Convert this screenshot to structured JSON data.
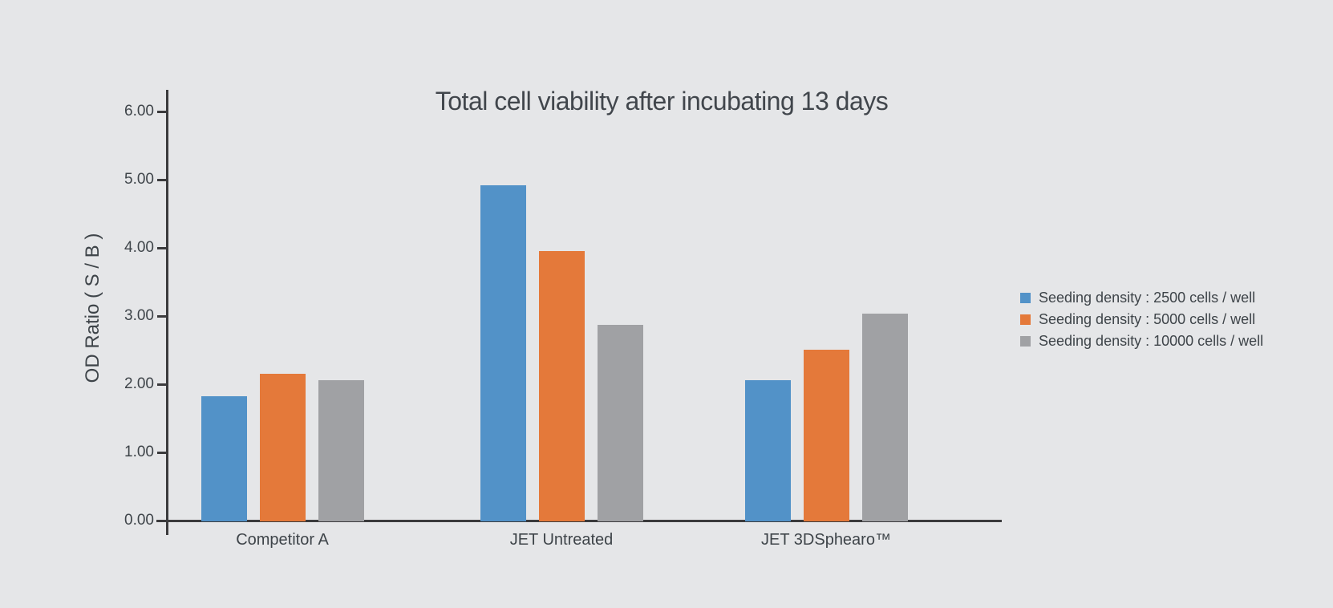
{
  "colors": {
    "background": "#E5E6E8",
    "axis": "#3B3B3D",
    "text": "#3E4449",
    "title_text": "#41464C"
  },
  "chart_data": {
    "type": "bar",
    "title": "Total cell viability after incubating 13 days",
    "xlabel": "",
    "ylabel": "OD Ratio ( S / B )",
    "categories": [
      "Competitor A",
      "JET Untreated",
      "JET 3DSphearo™"
    ],
    "series": [
      {
        "name": "Seeding density : 2500 cells / well",
        "color": "#5292C8",
        "values": [
          1.83,
          4.93,
          2.07
        ]
      },
      {
        "name": "Seeding density : 5000 cells / well",
        "color": "#E4793A",
        "values": [
          2.17,
          3.97,
          2.52
        ]
      },
      {
        "name": "Seeding density : 10000 cells / well",
        "color": "#A0A1A4",
        "values": [
          2.07,
          2.88,
          3.05
        ]
      }
    ],
    "ylim": [
      0,
      6
    ],
    "ytick_step": 1,
    "yticks": [
      "0.00",
      "1.00",
      "2.00",
      "3.00",
      "4.00",
      "5.00",
      "6.00"
    ],
    "grid": false,
    "legend_position": "right"
  }
}
